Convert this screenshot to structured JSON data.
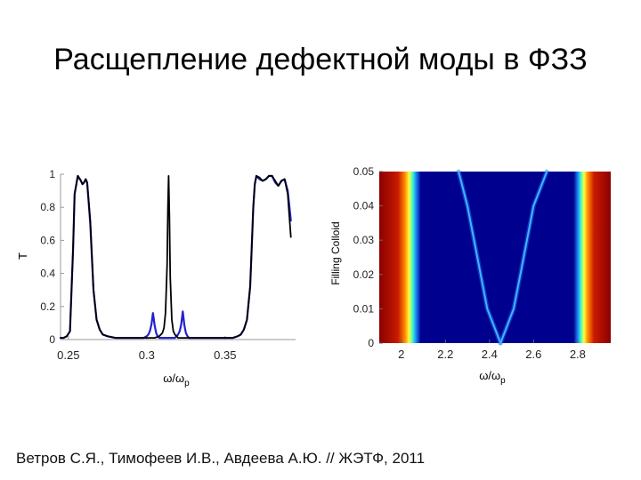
{
  "slide": {
    "title": "Расщепление дефектной моды в ФЗЗ",
    "citation": "Ветров С.Я., Тимофеев И.В., Авдеева А.Ю. // ЖЭТФ, 2011"
  },
  "chart_data": [
    {
      "type": "line",
      "ylabel": "T",
      "xlabel_main": "ω/ω",
      "xlabel_sub": "p",
      "xlim": [
        0.245,
        0.395
      ],
      "ylim": [
        0,
        1
      ],
      "xticks": [
        0.25,
        0.3,
        0.35
      ],
      "xtick_labels": [
        "0.25",
        "0.3",
        "0.35"
      ],
      "yticks": [
        0,
        0.2,
        0.4,
        0.6,
        0.8,
        1
      ],
      "ytick_labels": [
        "0",
        "0.2",
        "0.4",
        "0.6",
        "0.8",
        "1"
      ],
      "grid": false,
      "series": [
        {
          "color": "#2222cc",
          "x": [
            0.245,
            0.247,
            0.249,
            0.251,
            0.253,
            0.254,
            0.256,
            0.258,
            0.259,
            0.26,
            0.261,
            0.262,
            0.264,
            0.266,
            0.268,
            0.27,
            0.272,
            0.275,
            0.28,
            0.285,
            0.29,
            0.295,
            0.298,
            0.3,
            0.301,
            0.302,
            0.303,
            0.304,
            0.305,
            0.306,
            0.307,
            0.308,
            0.309,
            0.31,
            0.311,
            0.312,
            0.313,
            0.314,
            0.315,
            0.316,
            0.317,
            0.318,
            0.319,
            0.32,
            0.321,
            0.322,
            0.323,
            0.324,
            0.325,
            0.326,
            0.327,
            0.328,
            0.33,
            0.335,
            0.34,
            0.345,
            0.35,
            0.355,
            0.358,
            0.36,
            0.362,
            0.364,
            0.366,
            0.367,
            0.368,
            0.369,
            0.37,
            0.372,
            0.374,
            0.376,
            0.378,
            0.38,
            0.382,
            0.384,
            0.386,
            0.388,
            0.39,
            0.392
          ],
          "y": [
            0.01,
            0.01,
            0.02,
            0.05,
            0.55,
            0.88,
            0.99,
            0.96,
            0.94,
            0.95,
            0.97,
            0.95,
            0.7,
            0.3,
            0.12,
            0.06,
            0.03,
            0.02,
            0.01,
            0.01,
            0.01,
            0.01,
            0.01,
            0.02,
            0.03,
            0.05,
            0.09,
            0.16,
            0.09,
            0.04,
            0.02,
            0.01,
            0.01,
            0.01,
            0.01,
            0.01,
            0.01,
            0.01,
            0.01,
            0.01,
            0.01,
            0.01,
            0.02,
            0.03,
            0.05,
            0.09,
            0.17,
            0.09,
            0.04,
            0.02,
            0.01,
            0.01,
            0.01,
            0.01,
            0.01,
            0.01,
            0.01,
            0.01,
            0.02,
            0.03,
            0.06,
            0.12,
            0.32,
            0.55,
            0.8,
            0.94,
            0.99,
            0.97,
            0.96,
            0.97,
            0.99,
            0.99,
            0.95,
            0.93,
            0.96,
            0.97,
            0.9,
            0.72
          ]
        },
        {
          "color": "#000000",
          "x": [
            0.245,
            0.247,
            0.249,
            0.251,
            0.253,
            0.254,
            0.256,
            0.258,
            0.259,
            0.26,
            0.261,
            0.262,
            0.264,
            0.266,
            0.268,
            0.27,
            0.272,
            0.275,
            0.28,
            0.285,
            0.29,
            0.295,
            0.3,
            0.305,
            0.308,
            0.31,
            0.311,
            0.312,
            0.313,
            0.3135,
            0.314,
            0.3145,
            0.315,
            0.316,
            0.317,
            0.318,
            0.32,
            0.325,
            0.33,
            0.335,
            0.34,
            0.345,
            0.35,
            0.355,
            0.358,
            0.36,
            0.362,
            0.364,
            0.366,
            0.367,
            0.368,
            0.369,
            0.37,
            0.372,
            0.374,
            0.376,
            0.378,
            0.38,
            0.382,
            0.384,
            0.386,
            0.388,
            0.39,
            0.392
          ],
          "y": [
            0.01,
            0.01,
            0.02,
            0.05,
            0.55,
            0.88,
            0.99,
            0.96,
            0.94,
            0.95,
            0.97,
            0.95,
            0.72,
            0.3,
            0.12,
            0.06,
            0.03,
            0.02,
            0.01,
            0.01,
            0.01,
            0.01,
            0.01,
            0.01,
            0.02,
            0.04,
            0.07,
            0.16,
            0.45,
            0.8,
            0.99,
            0.75,
            0.38,
            0.12,
            0.05,
            0.03,
            0.01,
            0.01,
            0.01,
            0.01,
            0.01,
            0.01,
            0.01,
            0.01,
            0.02,
            0.03,
            0.06,
            0.12,
            0.32,
            0.55,
            0.8,
            0.94,
            0.99,
            0.98,
            0.96,
            0.97,
            0.99,
            0.99,
            0.96,
            0.93,
            0.96,
            0.97,
            0.88,
            0.62
          ]
        }
      ]
    },
    {
      "type": "heatmap",
      "xlabel_main": "ω/ω",
      "xlabel_sub": "p",
      "ylabel": "Filling Colloid",
      "xlim": [
        1.9,
        2.95
      ],
      "ylim": [
        0,
        0.05
      ],
      "xticks": [
        2,
        2.2,
        2.4,
        2.6,
        2.8
      ],
      "xtick_labels": [
        "2",
        "2.2",
        "2.4",
        "2.6",
        "2.8"
      ],
      "yticks": [
        0,
        0.01,
        0.02,
        0.03,
        0.04,
        0.05
      ],
      "ytick_labels": [
        "0",
        "0.01",
        "0.02",
        "0.03",
        "0.04",
        "0.05"
      ],
      "colors": {
        "low": "#00008f",
        "high": "#8b0000"
      },
      "band_edges": {
        "left": 2.04,
        "right": 2.83
      },
      "defect_mode": {
        "vertex_x": 2.45,
        "left_branch": {
          "x": [
            2.45,
            2.42,
            2.39,
            2.36,
            2.33,
            2.3,
            2.28,
            2.26
          ],
          "y": [
            0,
            0.005,
            0.01,
            0.02,
            0.03,
            0.04,
            0.045,
            0.05
          ]
        },
        "right_branch": {
          "x": [
            2.45,
            2.48,
            2.51,
            2.54,
            2.57,
            2.6,
            2.63,
            2.66
          ],
          "y": [
            0,
            0.005,
            0.01,
            0.02,
            0.03,
            0.04,
            0.045,
            0.05
          ]
        }
      }
    }
  ]
}
